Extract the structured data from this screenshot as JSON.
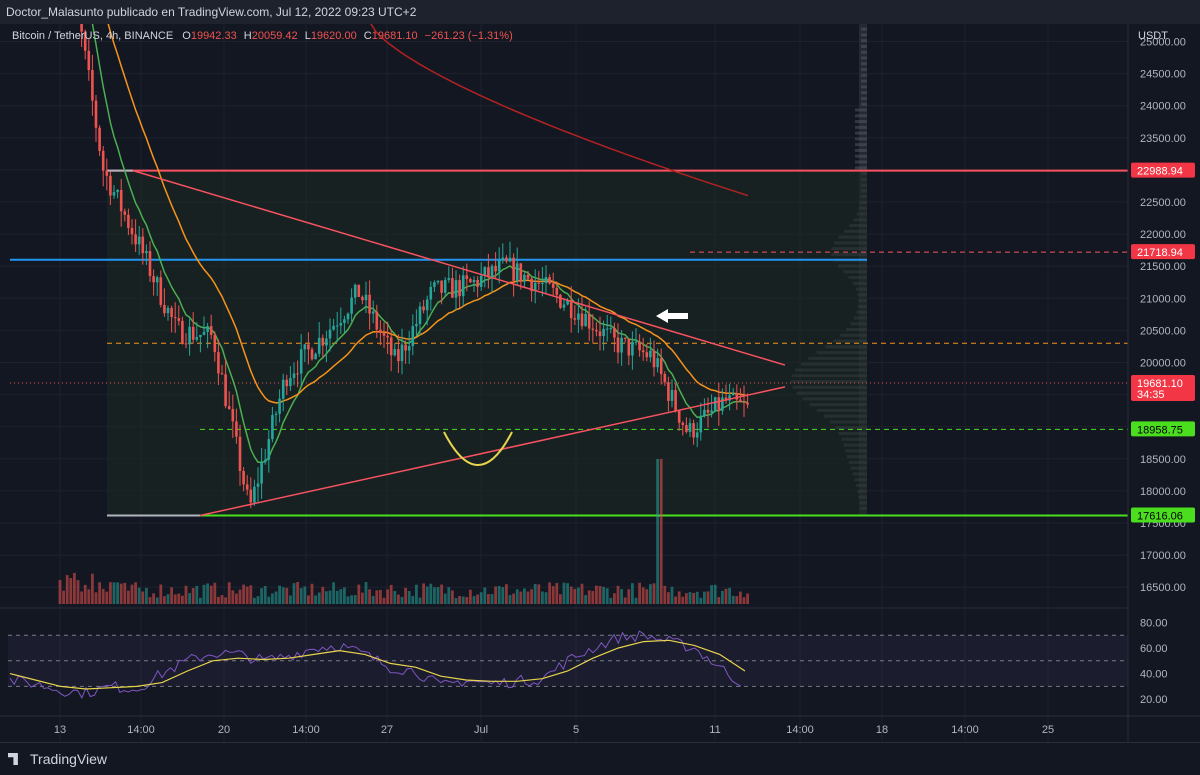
{
  "header": {
    "publisher": "Doctor_Malasunto publicado en TradingView.com, Jul 12, 2022 09:23 UTC+2"
  },
  "legend": {
    "symbol": "Bitcoin / TetherUS, 4h, BINANCE",
    "o_label": "O",
    "o_value": "19942.33",
    "h_label": "H",
    "h_value": "20059.42",
    "l_label": "L",
    "l_value": "19620.00",
    "c_label": "C",
    "c_value": "19681.10",
    "change": "−261.23 (−1.31%)"
  },
  "price_axis": {
    "currency": "USDT",
    "ticks": [
      "25000.00",
      "24500.00",
      "24000.00",
      "23500.00",
      "23000.00",
      "22500.00",
      "22000.00",
      "21500.00",
      "21000.00",
      "20500.00",
      "20000.00",
      "19500.00",
      "19000.00",
      "18500.00",
      "18000.00",
      "17500.00",
      "17000.00",
      "16500.00"
    ],
    "badges": [
      {
        "text": "22988.94",
        "sub": "",
        "color": "#f23645",
        "textColor": "#ffffff",
        "value": 22988.94
      },
      {
        "text": "21718.94",
        "sub": "",
        "color": "#f23645",
        "textColor": "#ffffff",
        "value": 21718.94
      },
      {
        "text": "19681.10",
        "sub": "34:35",
        "color": "#f23645",
        "textColor": "#ffffff",
        "value": 19681.1
      },
      {
        "text": "18958.75",
        "sub": "",
        "color": "#4ade1f",
        "textColor": "#000000",
        "value": 18958.75
      },
      {
        "text": "17616.06",
        "sub": "",
        "color": "#4ade1f",
        "textColor": "#000000",
        "value": 17616.06
      }
    ]
  },
  "rsi_axis": {
    "ticks": [
      "80.00",
      "60.00",
      "40.00",
      "20.00"
    ]
  },
  "time_axis": {
    "ticks": [
      "13",
      "14:00",
      "20",
      "14:00",
      "27",
      "Jul",
      "5",
      "11",
      "14:00",
      "18",
      "14:00",
      "25"
    ]
  },
  "footer": {
    "brand": "TradingView"
  },
  "colors": {
    "up": "#26a69a",
    "down": "#ef5350",
    "ema_fast": "#4caf50",
    "ema_slow": "#f7931a",
    "ma_long": "#b22222",
    "triangle": "#f7525f",
    "support": "#4ade1f",
    "resistance": "#f23645",
    "blue_line": "#2196f3",
    "rsi": "#7e57c2",
    "rsi_ma": "#e8d44d"
  },
  "chart_data": {
    "type": "candlestick",
    "symbol": "BTC/USDT",
    "timeframe": "4h",
    "price_range": [
      16300,
      25200
    ],
    "price_path": [
      [
        "2022-06-13",
        26500
      ],
      [
        "2022-06-14",
        23000
      ],
      [
        "2022-06-15",
        21800
      ],
      [
        "2022-06-16",
        20500
      ],
      [
        "2022-06-17",
        20400
      ],
      [
        "2022-06-18",
        17700
      ],
      [
        "2022-06-19",
        19800
      ],
      [
        "2022-06-20",
        20400
      ],
      [
        "2022-06-21",
        21100
      ],
      [
        "2022-06-22",
        20000
      ],
      [
        "2022-06-23",
        21100
      ],
      [
        "2022-06-24",
        21200
      ],
      [
        "2022-06-25",
        21500
      ],
      [
        "2022-06-26",
        21200
      ],
      [
        "2022-06-27",
        20800
      ],
      [
        "2022-06-28",
        20300
      ],
      [
        "2022-06-29",
        20100
      ],
      [
        "2022-06-30",
        18900
      ],
      [
        "2022-07-01",
        19400
      ],
      [
        "2022-07-02",
        19200
      ],
      [
        "2022-07-03",
        19300
      ],
      [
        "2022-07-04",
        19500
      ],
      [
        "2022-07-05",
        20300
      ],
      [
        "2022-07-06",
        20500
      ],
      [
        "2022-07-07",
        20600
      ],
      [
        "2022-07-08",
        21700
      ],
      [
        "2022-07-09",
        21800
      ],
      [
        "2022-07-10",
        21500
      ],
      [
        "2022-07-11",
        20500
      ],
      [
        "2022-07-12",
        19681.1
      ]
    ],
    "horizontal_levels": [
      {
        "price": 22988.94,
        "style": "solid",
        "color": "red"
      },
      {
        "price": 21718.94,
        "style": "dashed",
        "color": "red"
      },
      {
        "price": 21600,
        "style": "solid",
        "color": "blue"
      },
      {
        "price": 20300,
        "style": "dashed",
        "color": "orange"
      },
      {
        "price": 18958.75,
        "style": "dashed",
        "color": "green"
      },
      {
        "price": 17616.06,
        "style": "solid",
        "color": "green"
      }
    ],
    "rsi": {
      "range": [
        10,
        85
      ],
      "bands": [
        70,
        50,
        30
      ],
      "values": [
        35,
        32,
        27,
        25,
        30,
        28,
        40,
        50,
        56,
        55,
        50,
        54,
        60,
        62,
        55,
        45,
        42,
        30,
        35,
        32,
        34,
        36,
        50,
        60,
        68,
        70,
        65,
        60,
        45,
        30
      ],
      "ma": [
        40,
        35,
        30,
        28,
        29,
        30,
        33,
        42,
        50,
        52,
        51,
        52,
        55,
        58,
        55,
        48,
        45,
        38,
        35,
        34,
        34,
        36,
        42,
        52,
        60,
        65,
        66,
        62,
        55,
        42
      ]
    }
  }
}
